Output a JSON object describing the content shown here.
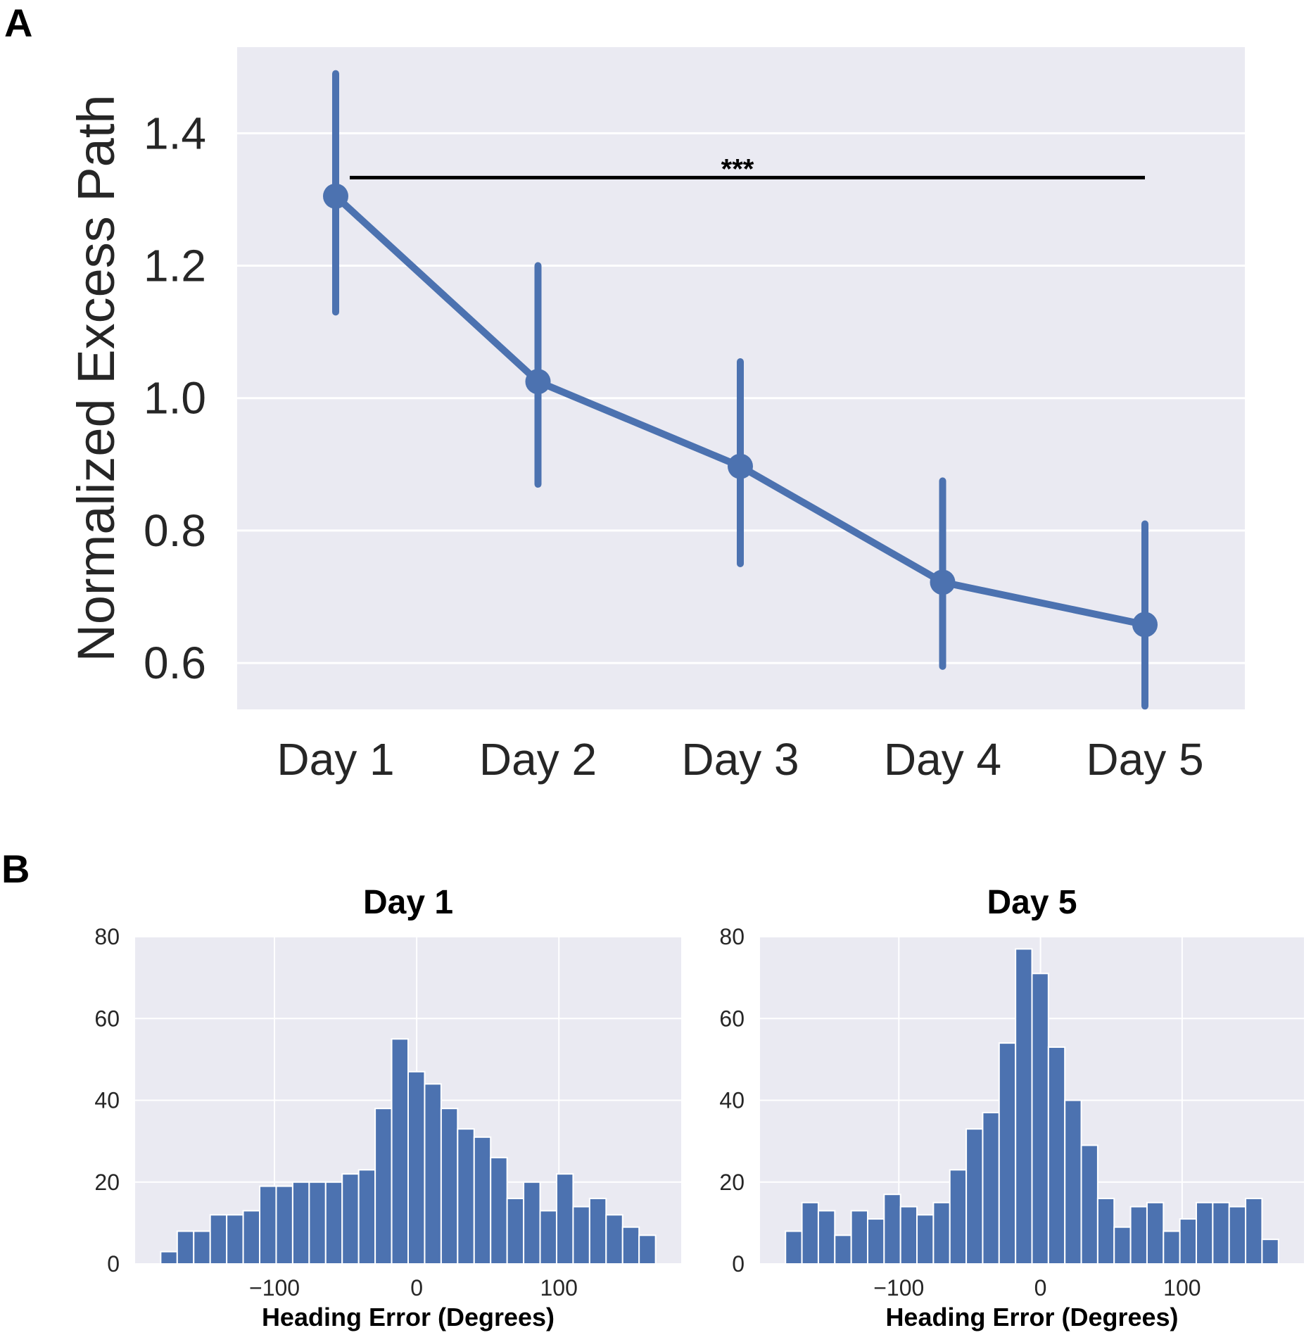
{
  "figure": {
    "panel_a_letter": "A",
    "panel_b_letter": "B"
  },
  "chart_data": [
    {
      "type": "line",
      "ylabel": "Normalized Excess Path",
      "xlabel": "",
      "categories": [
        "Day 1",
        "Day 2",
        "Day 3",
        "Day 4",
        "Day 5"
      ],
      "values": [
        1.305,
        1.025,
        0.897,
        0.722,
        0.658
      ],
      "error_low": [
        1.13,
        0.87,
        0.75,
        0.595,
        0.535
      ],
      "error_high": [
        1.49,
        1.2,
        1.055,
        0.875,
        0.81
      ],
      "ylim": [
        0.53,
        1.53
      ],
      "yticks": [
        0.6,
        0.8,
        1.0,
        1.2,
        1.4
      ],
      "ytick_labels": [
        "0.6",
        "0.8",
        "1.0",
        "1.2",
        "1.4"
      ],
      "grid": true,
      "background": "#eaeaf2",
      "color": "#4c72b0",
      "annotation": {
        "text": "***",
        "from": "Day 1",
        "to": "Day 5",
        "y": 1.333
      }
    },
    {
      "type": "bar",
      "title": "Day 1",
      "xlabel": "Heading Error (Degrees)",
      "ylabel": "",
      "bin_edges_start": -180,
      "bin_width": 11.6,
      "counts": [
        3,
        8,
        8,
        12,
        12,
        13,
        19,
        19,
        20,
        20,
        20,
        22,
        23,
        38,
        55,
        47,
        44,
        38,
        33,
        31,
        26,
        16,
        20,
        13,
        22,
        14,
        16,
        12,
        9,
        7
      ],
      "xlim": [
        -198,
        186
      ],
      "ylim": [
        0,
        80
      ],
      "xticks": [
        -100,
        0,
        100
      ],
      "xtick_labels": [
        "−100",
        "0",
        "100"
      ],
      "yticks": [
        0,
        20,
        40,
        60,
        80
      ],
      "ytick_labels": [
        "0",
        "20",
        "40",
        "60",
        "80"
      ],
      "grid": true,
      "background": "#eaeaf2",
      "color": "#4c72b0"
    },
    {
      "type": "bar",
      "title": "Day 5",
      "xlabel": "Heading Error (Degrees)",
      "ylabel": "",
      "bin_edges_start": -180,
      "bin_width": 11.6,
      "counts": [
        8,
        15,
        13,
        7,
        13,
        11,
        17,
        14,
        12,
        15,
        23,
        33,
        37,
        54,
        77,
        71,
        53,
        40,
        29,
        16,
        9,
        14,
        15,
        8,
        11,
        15,
        15,
        14,
        16,
        6
      ],
      "xlim": [
        -198,
        186
      ],
      "ylim": [
        0,
        80
      ],
      "xticks": [
        -100,
        0,
        100
      ],
      "xtick_labels": [
        "−100",
        "0",
        "100"
      ],
      "yticks": [
        0,
        20,
        40,
        60,
        80
      ],
      "ytick_labels": [
        "0",
        "20",
        "40",
        "60",
        "80"
      ],
      "grid": true,
      "background": "#eaeaf2",
      "color": "#4c72b0"
    }
  ]
}
